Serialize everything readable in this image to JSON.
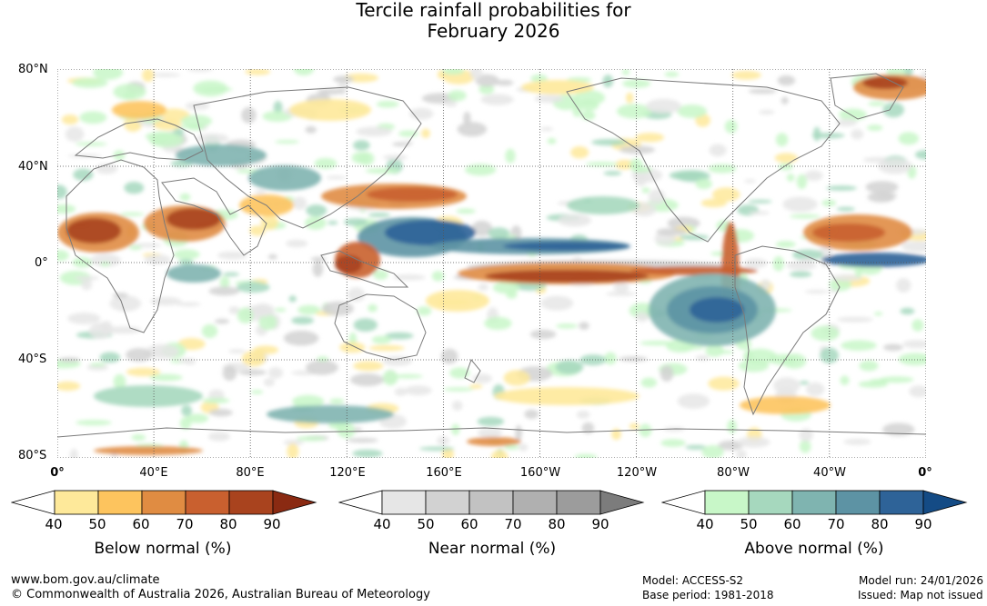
{
  "title_line1": "Tercile rainfall probabilities for",
  "title_line2": "February 2026",
  "lat_labels": [
    "80°N",
    "40°N",
    "0°",
    "40°S",
    "80°S"
  ],
  "lon_labels": [
    "0°",
    "40°E",
    "80°E",
    "120°E",
    "160°E",
    "160°W",
    "120°W",
    "80°W",
    "40°W",
    "0°"
  ],
  "colorbars": [
    {
      "title": "Below normal (%)",
      "ticks": [
        "40",
        "50",
        "60",
        "70",
        "80",
        "90"
      ],
      "colors": [
        "#ffffff",
        "#fee99a",
        "#fdc45e",
        "#e08c42",
        "#c9602f",
        "#a9431e",
        "#8a2a12"
      ]
    },
    {
      "title": "Near normal (%)",
      "ticks": [
        "40",
        "50",
        "60",
        "70",
        "80",
        "90"
      ],
      "colors": [
        "#ffffff",
        "#e6e6e6",
        "#d2d2d2",
        "#c2c2c2",
        "#b0b0b0",
        "#9c9c9c",
        "#7c7c7c"
      ]
    },
    {
      "title": "Above normal (%)",
      "ticks": [
        "40",
        "50",
        "60",
        "70",
        "80",
        "90"
      ],
      "colors": [
        "#ffffff",
        "#c8f7c8",
        "#a6d8be",
        "#7fb4b0",
        "#5d93a4",
        "#2e6398",
        "#144b85"
      ]
    }
  ],
  "footer": {
    "website": "www.bom.gov.au/climate",
    "copyright": "© Commonwealth of Australia 2026, Australian Bureau of Meteorology",
    "model": "Model: ACCESS-S2",
    "base_period": "Base period: 1981-2018",
    "model_run": "Model run: 24/01/2026",
    "issued": "Issued: Map not issued"
  }
}
